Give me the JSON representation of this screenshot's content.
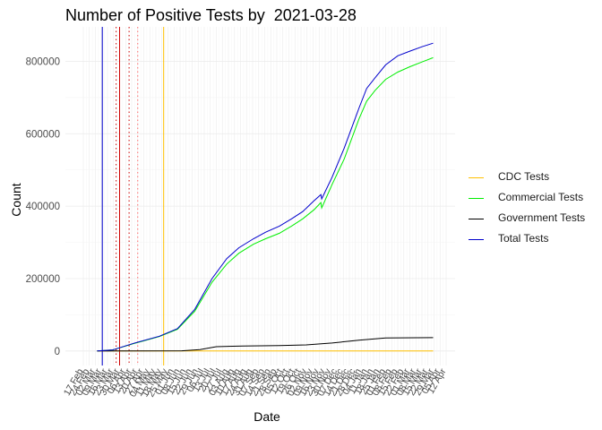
{
  "chart_data": {
    "type": "line",
    "title": "Number of Positive Tests by  2021-03-28",
    "xlabel": "Date",
    "ylabel": "Count",
    "ylim": [
      -40000,
      895000
    ],
    "y_ticks": [
      0,
      200000,
      400000,
      600000,
      800000
    ],
    "y_tick_labels": [
      "0",
      "200000",
      "400000",
      "600000",
      "800000"
    ],
    "x_tick_labels": [
      "17 Feb",
      "24 Feb",
      "02 Mar",
      "09 Mar",
      "16 Mar",
      "23 Mar",
      "30 Mar",
      "06 Apr",
      "13 Apr",
      "20 Apr",
      "27 Apr",
      "04 May",
      "11 May",
      "18 May",
      "25 May",
      "01 Jun",
      "08 Jun",
      "15 Jun",
      "22 Jun",
      "29 Jun",
      "06 Jul",
      "13 Jul",
      "20 Jul",
      "27 Jul",
      "03 Aug",
      "10 Aug",
      "17 Aug",
      "24 Aug",
      "31 Aug",
      "07 Sep",
      "14 Sep",
      "21 Sep",
      "28 Sep",
      "05 Oct",
      "12 Oct",
      "19 Oct",
      "26 Oct",
      "02 Nov",
      "09 Nov",
      "16 Nov",
      "23 Nov",
      "30 Nov",
      "07 Dec",
      "14 Dec",
      "21 Dec",
      "28 Dec",
      "04 Jan",
      "11 Jan",
      "18 Jan",
      "25 Jan",
      "01 Feb",
      "08 Feb",
      "15 Feb",
      "22 Feb",
      "01 Mar",
      "08 Mar",
      "15 Mar",
      "22 Mar",
      "29 Mar",
      "05 Apr",
      "12 Apr"
    ],
    "grid": true,
    "legend_position": "right",
    "series": [
      {
        "name": "CDC Tests",
        "color": "#FFC000",
        "x": [
          "2020-03-04",
          "2021-03-28"
        ],
        "y": [
          0,
          0
        ]
      },
      {
        "name": "Commercial Tests",
        "color": "#00EE00",
        "x": [
          "2020-03-04",
          "2020-03-22",
          "2020-04-15",
          "2020-05-15",
          "2020-06-05",
          "2020-06-25",
          "2020-07-15",
          "2020-08-01",
          "2020-08-15",
          "2020-09-01",
          "2020-09-15",
          "2020-10-01",
          "2020-10-15",
          "2020-10-28",
          "2020-11-10",
          "2020-11-18",
          "2020-11-19",
          "2020-12-01",
          "2020-12-15",
          "2021-01-01",
          "2021-01-10",
          "2021-01-20",
          "2021-02-01",
          "2021-02-15",
          "2021-03-01",
          "2021-03-15",
          "2021-03-28"
        ],
        "y": [
          0,
          3000,
          20000,
          40000,
          60000,
          110000,
          190000,
          240000,
          270000,
          295000,
          310000,
          325000,
          345000,
          365000,
          390000,
          410000,
          395000,
          460000,
          530000,
          640000,
          690000,
          720000,
          750000,
          770000,
          785000,
          798000,
          810000
        ]
      },
      {
        "name": "Government Tests",
        "color": "#000000",
        "x": [
          "2020-03-04",
          "2020-04-01",
          "2020-06-10",
          "2020-07-01",
          "2020-07-20",
          "2020-08-20",
          "2020-10-01",
          "2020-11-01",
          "2020-12-01",
          "2021-01-01",
          "2021-02-01",
          "2021-03-28"
        ],
        "y": [
          0,
          100,
          500,
          4000,
          12000,
          14000,
          15000,
          17000,
          22000,
          30000,
          36000,
          37000
        ]
      },
      {
        "name": "Total Tests",
        "color": "#0000CC",
        "x": [
          "2020-03-04",
          "2020-03-22",
          "2020-04-15",
          "2020-05-15",
          "2020-06-05",
          "2020-06-25",
          "2020-07-15",
          "2020-08-01",
          "2020-08-15",
          "2020-09-01",
          "2020-09-15",
          "2020-10-01",
          "2020-10-15",
          "2020-10-28",
          "2020-11-10",
          "2020-11-18",
          "2020-11-19",
          "2020-12-01",
          "2020-12-15",
          "2021-01-01",
          "2021-01-10",
          "2021-01-20",
          "2021-02-01",
          "2021-02-15",
          "2021-03-01",
          "2021-03-15",
          "2021-03-28"
        ],
        "y": [
          0,
          3000,
          21000,
          41000,
          62000,
          115000,
          200000,
          255000,
          285000,
          310000,
          328000,
          345000,
          365000,
          385000,
          415000,
          432000,
          420000,
          480000,
          560000,
          670000,
          725000,
          755000,
          790000,
          815000,
          828000,
          840000,
          850000
        ]
      }
    ],
    "vlines": [
      {
        "x": "2020-03-10",
        "color": "#0000CC",
        "style": "solid"
      },
      {
        "x": "2020-03-26",
        "color": "#CC0000",
        "style": "dotted"
      },
      {
        "x": "2020-03-30",
        "color": "#CC0000",
        "style": "solid"
      },
      {
        "x": "2020-04-10",
        "color": "#CC0000",
        "style": "dotted"
      },
      {
        "x": "2020-04-20",
        "color": "#FF6666",
        "style": "dotted"
      },
      {
        "x": "2020-05-20",
        "color": "#FFC000",
        "style": "solid"
      }
    ]
  }
}
